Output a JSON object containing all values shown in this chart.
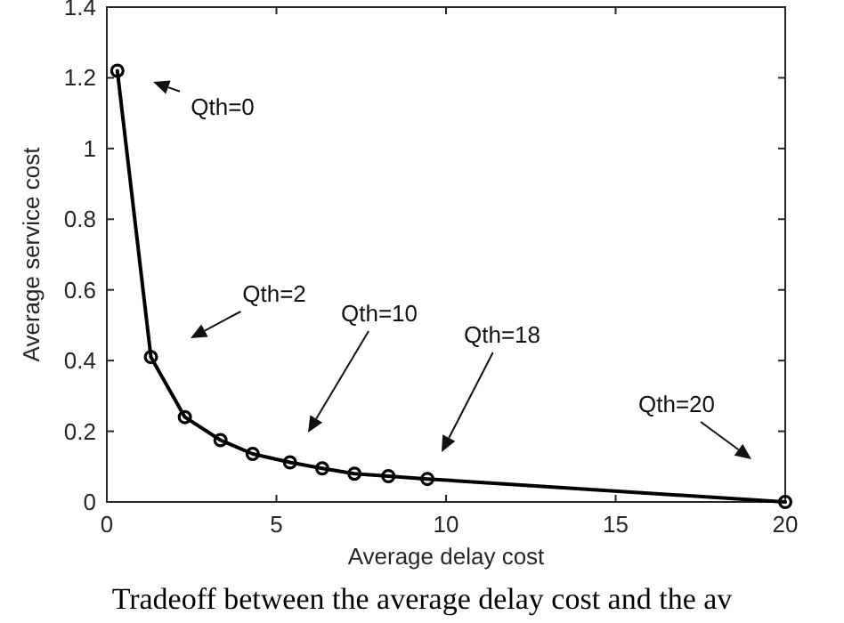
{
  "chart_data": {
    "type": "line",
    "xlabel": "Average delay cost",
    "ylabel": "Average service cost",
    "x": [
      0.31,
      1.3,
      2.3,
      3.35,
      4.3,
      5.4,
      6.35,
      7.3,
      8.3,
      9.45,
      20
    ],
    "series": [
      {
        "color": "#000000",
        "values": [
          1.22,
          0.41,
          0.24,
          0.175,
          0.136,
          0.112,
          0.095,
          0.08,
          0.073,
          0.065,
          0
        ]
      }
    ],
    "xlim": [
      0,
      20
    ],
    "xticks": [
      0,
      5,
      10,
      15,
      20
    ],
    "ylim": [
      0,
      1.4
    ],
    "yticks": [
      0,
      0.2,
      0.4,
      0.6,
      0.8,
      1,
      1.2,
      1.4
    ],
    "marker": "circle",
    "line_style": "solid",
    "grid": false,
    "annotations": [
      "Qth=0",
      "Qth=2",
      "Qth=10",
      "Qth=18",
      "Qth=20",
      "Tradeoff between the average delay cost and the av"
    ]
  }
}
